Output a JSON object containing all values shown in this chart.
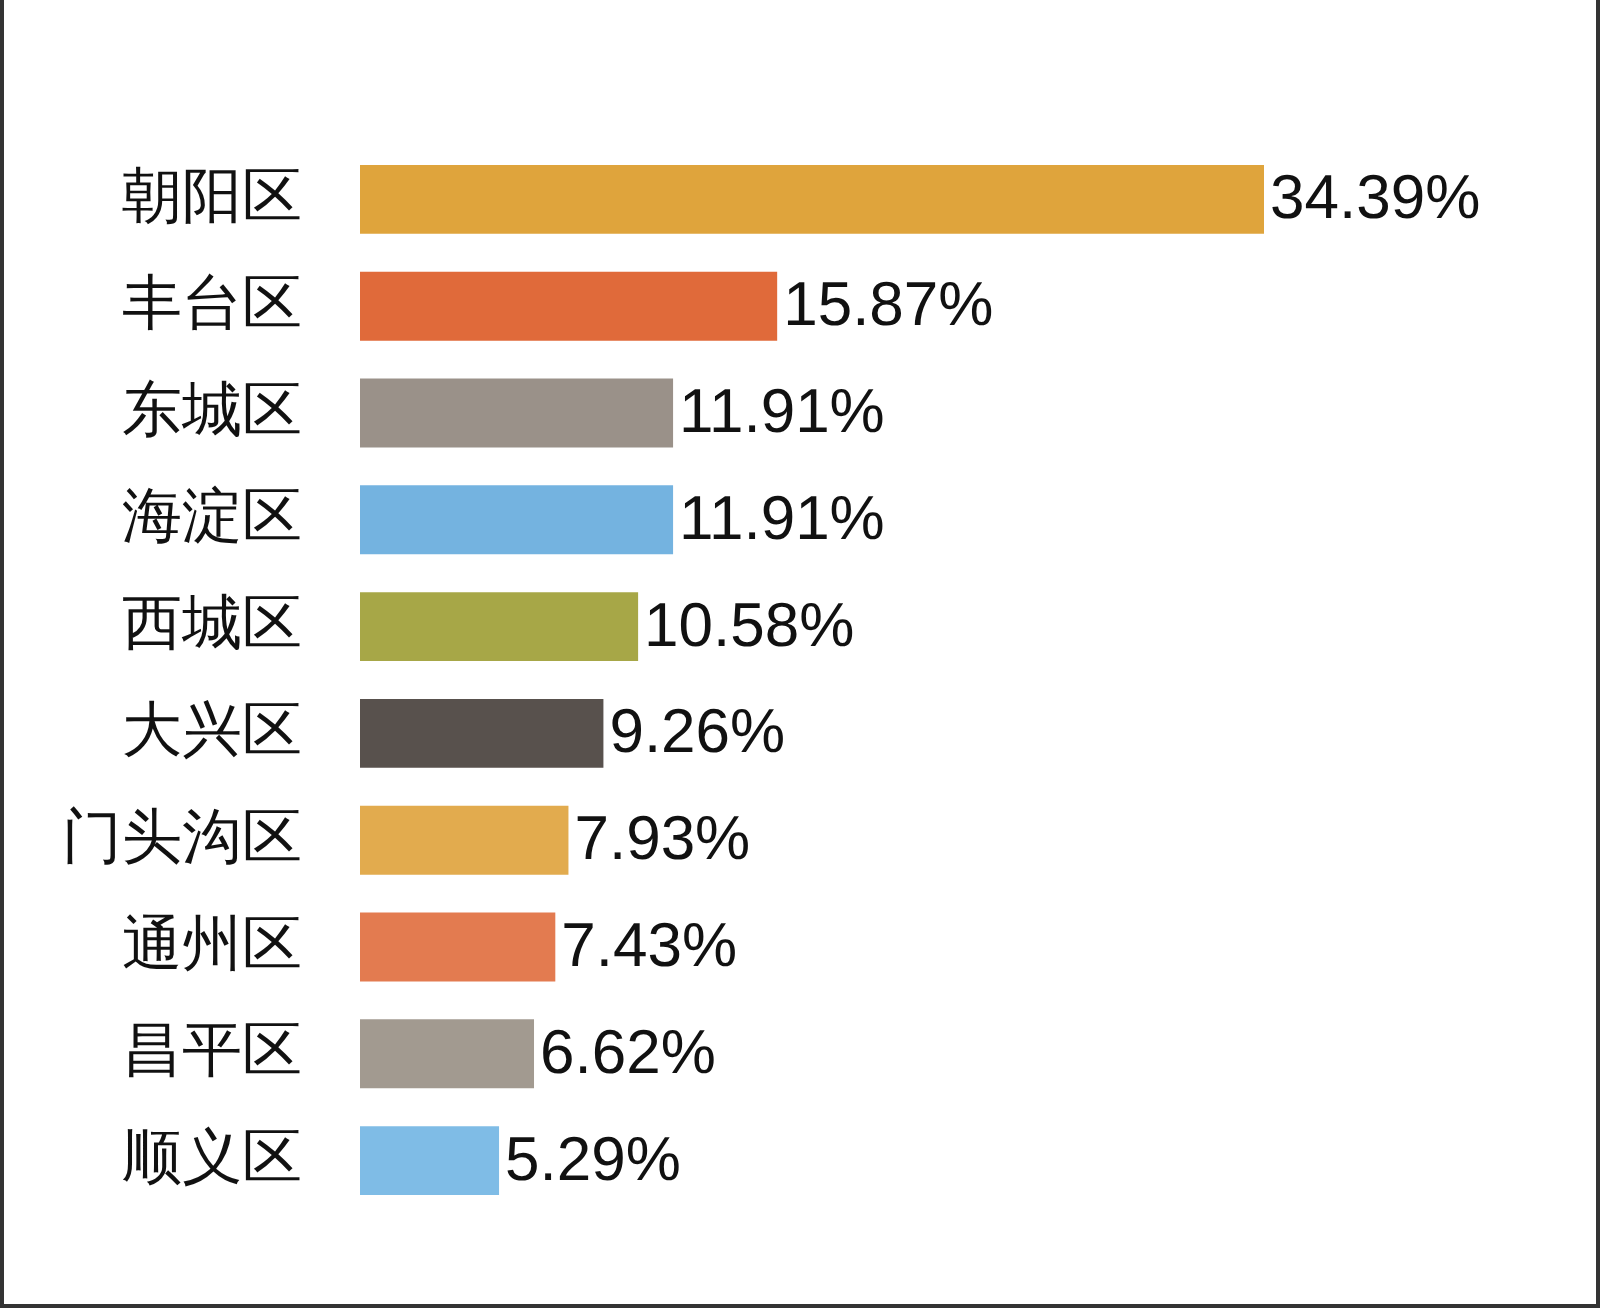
{
  "chart_data": {
    "type": "bar",
    "orientation": "horizontal",
    "categories": [
      "朝阳区",
      "丰台区",
      "东城区",
      "海淀区",
      "西城区",
      "大兴区",
      "门头沟区",
      "通州区",
      "昌平区",
      "顺义区"
    ],
    "values": [
      34.39,
      15.87,
      11.91,
      11.91,
      10.58,
      9.26,
      7.93,
      7.43,
      6.62,
      5.29
    ],
    "value_labels": [
      "34.39%",
      "15.87%",
      "11.91%",
      "11.91%",
      "10.58%",
      "9.26%",
      "7.93%",
      "7.43%",
      "6.62%",
      "5.29%"
    ],
    "colors": [
      "#dfa43c",
      "#e06a3a",
      "#9a9189",
      "#74b3e0",
      "#a7a747",
      "#58514d",
      "#e2ab4e",
      "#e37b50",
      "#a29a90",
      "#7fbce6"
    ]
  }
}
